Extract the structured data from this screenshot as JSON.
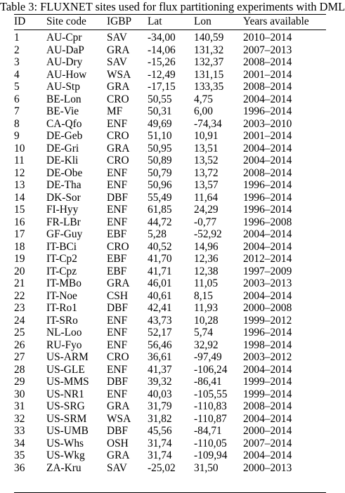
{
  "caption": "Table 3: FLUXNET sites used for flux partitioning experiments with DML",
  "columns": [
    "ID",
    "Site code",
    "IGBP",
    "Lat",
    "Lon",
    "Years available"
  ],
  "rows": [
    [
      "1",
      "AU-Cpr",
      "SAV",
      "-34,00",
      "140,59",
      "2010–2014"
    ],
    [
      "2",
      "AU-DaP",
      "GRA",
      "-14,06",
      "131,32",
      "2007–2013"
    ],
    [
      "3",
      "AU-Dry",
      "SAV",
      "-15,26",
      "132,37",
      "2008–2014"
    ],
    [
      "4",
      "AU-How",
      "WSA",
      "-12,49",
      "131,15",
      "2001–2014"
    ],
    [
      "5",
      "AU-Stp",
      "GRA",
      "-17,15",
      "133,35",
      "2008–2014"
    ],
    [
      "6",
      "BE-Lon",
      "CRO",
      "50,55",
      "4,75",
      "2004–2014"
    ],
    [
      "7",
      "BE-Vie",
      "MF",
      "50,31",
      "6,00",
      "1996–2014"
    ],
    [
      "8",
      "CA-Qfo",
      "ENF",
      "49,69",
      "-74,34",
      "2003–2010"
    ],
    [
      "9",
      "DE-Geb",
      "CRO",
      "51,10",
      "10,91",
      "2001–2014"
    ],
    [
      "10",
      "DE-Gri",
      "GRA",
      "50,95",
      "13,51",
      "2004–2014"
    ],
    [
      "11",
      "DE-Kli",
      "CRO",
      "50,89",
      "13,52",
      "2004–2014"
    ],
    [
      "12",
      "DE-Obe",
      "ENF",
      "50,79",
      "13,72",
      "2008–2014"
    ],
    [
      "13",
      "DE-Tha",
      "ENF",
      "50,96",
      "13,57",
      "1996–2014"
    ],
    [
      "14",
      "DK-Sor",
      "DBF",
      "55,49",
      "11,64",
      "1996–2014"
    ],
    [
      "15",
      "FI-Hyy",
      "ENF",
      "61,85",
      "24,29",
      "1996–2014"
    ],
    [
      "16",
      "FR-LBr",
      "ENF",
      "44,72",
      "-0,77",
      "1996–2008"
    ],
    [
      "17",
      "GF-Guy",
      "EBF",
      "5,28",
      "-52,92",
      "2004–2014"
    ],
    [
      "18",
      "IT-BCi",
      "CRO",
      "40,52",
      "14,96",
      "2004–2014"
    ],
    [
      "19",
      "IT-Cp2",
      "EBF",
      "41,70",
      "12,36",
      "2012–2014"
    ],
    [
      "20",
      "IT-Cpz",
      "EBF",
      "41,71",
      "12,38",
      "1997–2009"
    ],
    [
      "21",
      "IT-MBo",
      "GRA",
      "46,01",
      "11,05",
      "2003–2013"
    ],
    [
      "22",
      "IT-Noe",
      "CSH",
      "40,61",
      "8,15",
      "2004–2014"
    ],
    [
      "23",
      "IT-Ro1",
      "DBF",
      "42,41",
      "11,93",
      "2000–2008"
    ],
    [
      "24",
      "IT-SRo",
      "ENF",
      "43,73",
      "10,28",
      "1999–2012"
    ],
    [
      "25",
      "NL-Loo",
      "ENF",
      "52,17",
      "5,74",
      "1996–2014"
    ],
    [
      "26",
      "RU-Fyo",
      "ENF",
      "56,46",
      "32,92",
      "1998–2014"
    ],
    [
      "27",
      "US-ARM",
      "CRO",
      "36,61",
      "-97,49",
      "2003–2012"
    ],
    [
      "28",
      "US-GLE",
      "ENF",
      "41,37",
      "-106,24",
      "2004–2014"
    ],
    [
      "29",
      "US-MMS",
      "DBF",
      "39,32",
      "-86,41",
      "1999–2014"
    ],
    [
      "30",
      "US-NR1",
      "ENF",
      "40,03",
      "-105,55",
      "1999–2014"
    ],
    [
      "31",
      "US-SRG",
      "GRA",
      "31,79",
      "-110,83",
      "2008–2014"
    ],
    [
      "32",
      "US-SRM",
      "WSA",
      "31,82",
      "-110,87",
      "2004–2014"
    ],
    [
      "33",
      "US-UMB",
      "DBF",
      "45,56",
      "-84,71",
      "2000–2014"
    ],
    [
      "34",
      "US-Whs",
      "OSH",
      "31,74",
      "-110,05",
      "2007–2014"
    ],
    [
      "35",
      "US-Wkg",
      "GRA",
      "31,74",
      "-109,94",
      "2004–2014"
    ],
    [
      "36",
      "ZA-Kru",
      "SAV",
      "-25,02",
      "31,50",
      "2000–2013"
    ]
  ]
}
